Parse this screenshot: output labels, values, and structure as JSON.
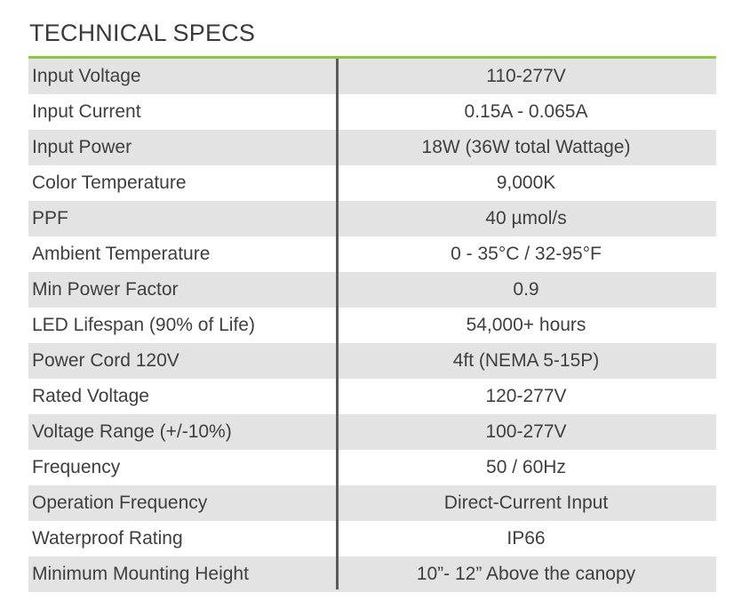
{
  "title": "TECHNICAL SPECS",
  "colors": {
    "accent_rule": "#8dc63f",
    "row_shade": "#e3e3e3",
    "divider": "#5a5a5a",
    "text": "#3f3f3f"
  },
  "specs": [
    {
      "label": "Input Voltage",
      "value": "110-277V"
    },
    {
      "label": "Input Current",
      "value": "0.15A - 0.065A"
    },
    {
      "label": "Input Power",
      "value": "18W (36W total Wattage)"
    },
    {
      "label": "Color Temperature",
      "value": "9,000K"
    },
    {
      "label": "PPF",
      "value": "40 µmol/s"
    },
    {
      "label": "Ambient Temperature",
      "value": "0 - 35°C / 32-95°F"
    },
    {
      "label": "Min Power Factor",
      "value": "0.9"
    },
    {
      "label": "LED Lifespan (90% of Life)",
      "value": "54,000+ hours"
    },
    {
      "label": "Power Cord 120V",
      "value": "4ft (NEMA 5-15P)"
    },
    {
      "label": "Rated Voltage",
      "value": "120-277V"
    },
    {
      "label": "Voltage Range (+/-10%)",
      "value": "100-277V"
    },
    {
      "label": "Frequency",
      "value": "50 / 60Hz"
    },
    {
      "label": "Operation Frequency",
      "value": "Direct-Current Input"
    },
    {
      "label": "Waterproof Rating",
      "value": "IP66"
    },
    {
      "label": "Minimum Mounting Height",
      "value": "10”- 12” Above the canopy"
    }
  ]
}
